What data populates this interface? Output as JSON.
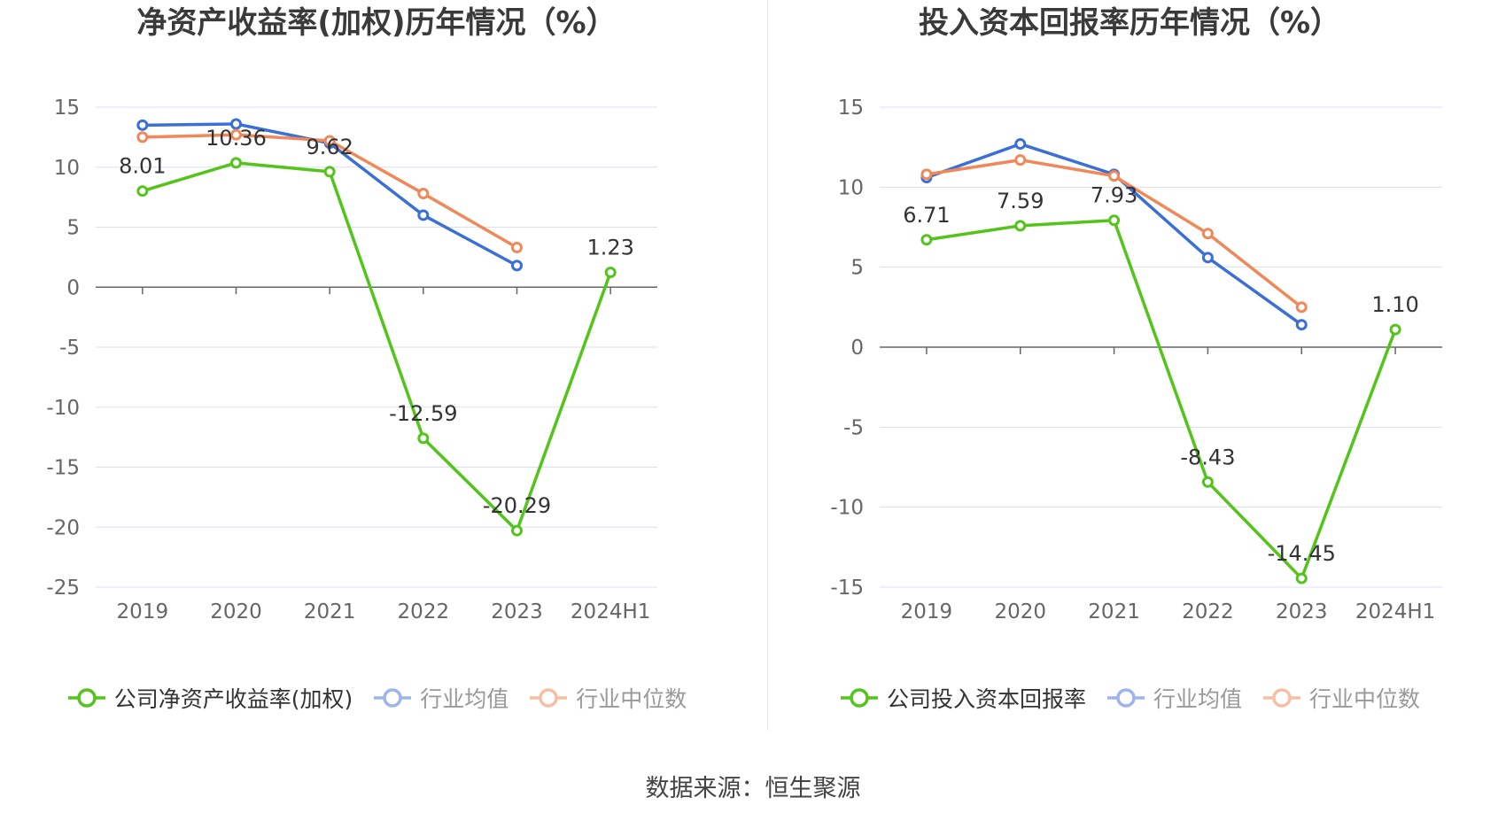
{
  "source_text": "数据来源：恒生聚源",
  "chart_data": [
    {
      "type": "line",
      "title": "净资产收益率(加权)历年情况（%）",
      "categories": [
        "2019",
        "2020",
        "2021",
        "2022",
        "2023",
        "2024H1"
      ],
      "ylim": [
        -25,
        15
      ],
      "yticks": [
        15,
        10,
        5,
        0,
        -5,
        -10,
        -15,
        -20,
        -25
      ],
      "grid": true,
      "legend_position": "bottom",
      "series": [
        {
          "name": "公司净资产收益率(加权)",
          "color": "#52c41a",
          "values": [
            8.01,
            10.36,
            9.62,
            -12.59,
            -20.29,
            1.23
          ],
          "labels": [
            "8.01",
            "10.36",
            "9.62",
            "-12.59",
            "-20.29",
            "1.23"
          ],
          "muted": false
        },
        {
          "name": "行业均值",
          "color": "#3a6fd8",
          "values": [
            13.5,
            13.6,
            12.0,
            6.0,
            1.8,
            null
          ],
          "muted": true
        },
        {
          "name": "行业中位数",
          "color": "#f0885a",
          "values": [
            12.5,
            12.7,
            12.2,
            7.8,
            3.3,
            null
          ],
          "muted": true
        }
      ]
    },
    {
      "type": "line",
      "title": "投入资本回报率历年情况（%）",
      "categories": [
        "2019",
        "2020",
        "2021",
        "2022",
        "2023",
        "2024H1"
      ],
      "ylim": [
        -15,
        15
      ],
      "yticks": [
        15,
        10,
        5,
        0,
        -5,
        -10,
        -15
      ],
      "grid": true,
      "legend_position": "bottom",
      "series": [
        {
          "name": "公司投入资本回报率",
          "color": "#52c41a",
          "values": [
            6.71,
            7.59,
            7.93,
            -8.43,
            -14.45,
            1.1
          ],
          "labels": [
            "6.71",
            "7.59",
            "7.93",
            "-8.43",
            "-14.45",
            "1.10"
          ],
          "muted": false
        },
        {
          "name": "行业均值",
          "color": "#3a6fd8",
          "values": [
            10.6,
            12.7,
            10.8,
            5.6,
            1.4,
            null
          ],
          "muted": true
        },
        {
          "name": "行业中位数",
          "color": "#f0885a",
          "values": [
            10.8,
            11.7,
            10.7,
            7.1,
            2.5,
            null
          ],
          "muted": true
        }
      ]
    }
  ]
}
